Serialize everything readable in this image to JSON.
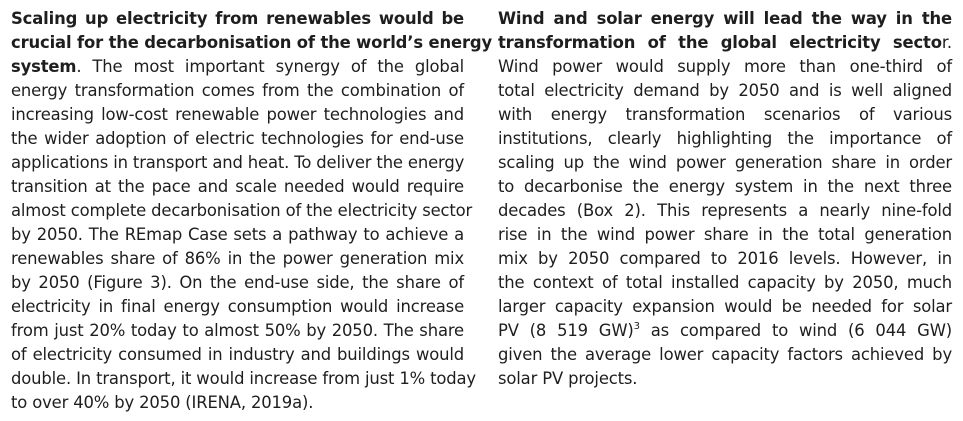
{
  "left_column": {
    "lines": [
      {
        "bold": "Scaling up electricity from renewables would be",
        "text": ""
      },
      {
        "bold": "crucial for the decarbonisation of the world’s energy",
        "text": ""
      },
      {
        "bold": "system",
        "text": ". The most important synergy of the global"
      },
      {
        "bold": "",
        "text": "energy transformation comes from the combination of"
      },
      {
        "bold": "",
        "text": "increasing low-cost renewable power technologies and"
      },
      {
        "bold": "",
        "text": "the wider adoption of electric technologies for end-use"
      },
      {
        "bold": "",
        "text": "applications in transport and heat. To deliver the energy"
      },
      {
        "bold": "",
        "text": "transition at the pace and scale needed would require"
      },
      {
        "bold": "",
        "text": "almost complete decarbonisation of the electricity sector"
      },
      {
        "bold": "",
        "text": "by 2050. The REmap Case sets a pathway to achieve a"
      },
      {
        "bold": "",
        "text": "renewables share of 86% in the power generation mix"
      },
      {
        "bold": "",
        "text": "by 2050 (Figure 3). On the end-use side, the share of"
      },
      {
        "bold": "",
        "text": "electricity in final energy consumption would increase"
      },
      {
        "bold": "",
        "text": "from just 20% today to almost 50% by 2050. The share"
      },
      {
        "bold": "",
        "text": "of electricity consumed in industry and buildings would"
      },
      {
        "bold": "",
        "text": "double. In transport, it would increase from just 1% today"
      },
      {
        "bold": "",
        "text": "to over 40% by 2050 (IRENA, 2019a)."
      }
    ]
  },
  "right_column": {
    "lines": [
      {
        "bold": "Wind and solar energy will lead the way in the",
        "text": ""
      },
      {
        "bold": "transformation of the global electricity secto",
        "text": "r."
      },
      {
        "bold": "",
        "text": "Wind power would supply more than one-third of"
      },
      {
        "bold": "",
        "text": "total electricity demand by 2050 and is well aligned"
      },
      {
        "bold": "",
        "text": "with energy transformation scenarios of various"
      },
      {
        "bold": "",
        "text": "institutions, clearly highlighting the importance of"
      },
      {
        "bold": "",
        "text": "scaling up the wind power generation share in order"
      },
      {
        "bold": "",
        "text": "to decarbonise the energy system in the next three"
      },
      {
        "bold": "",
        "text": "decades (Box 2). This represents a nearly nine-fold"
      },
      {
        "bold": "",
        "text": "rise in the wind power share in the total generation"
      },
      {
        "bold": "",
        "text": "mix by 2050 compared to 2016 levels. However, in"
      },
      {
        "bold": "",
        "text": "the context of total installed capacity by 2050, much"
      },
      {
        "bold": "",
        "text": "larger capacity expansion would be needed for solar"
      },
      {
        "bold": "",
        "text": "PV (8 519 GW)",
        "sup": "3",
        "after": " as compared to wind (6 044 GW)"
      },
      {
        "bold": "",
        "text": "given the average lower capacity factors achieved by"
      },
      {
        "bold": "",
        "text": "solar PV projects."
      }
    ]
  }
}
